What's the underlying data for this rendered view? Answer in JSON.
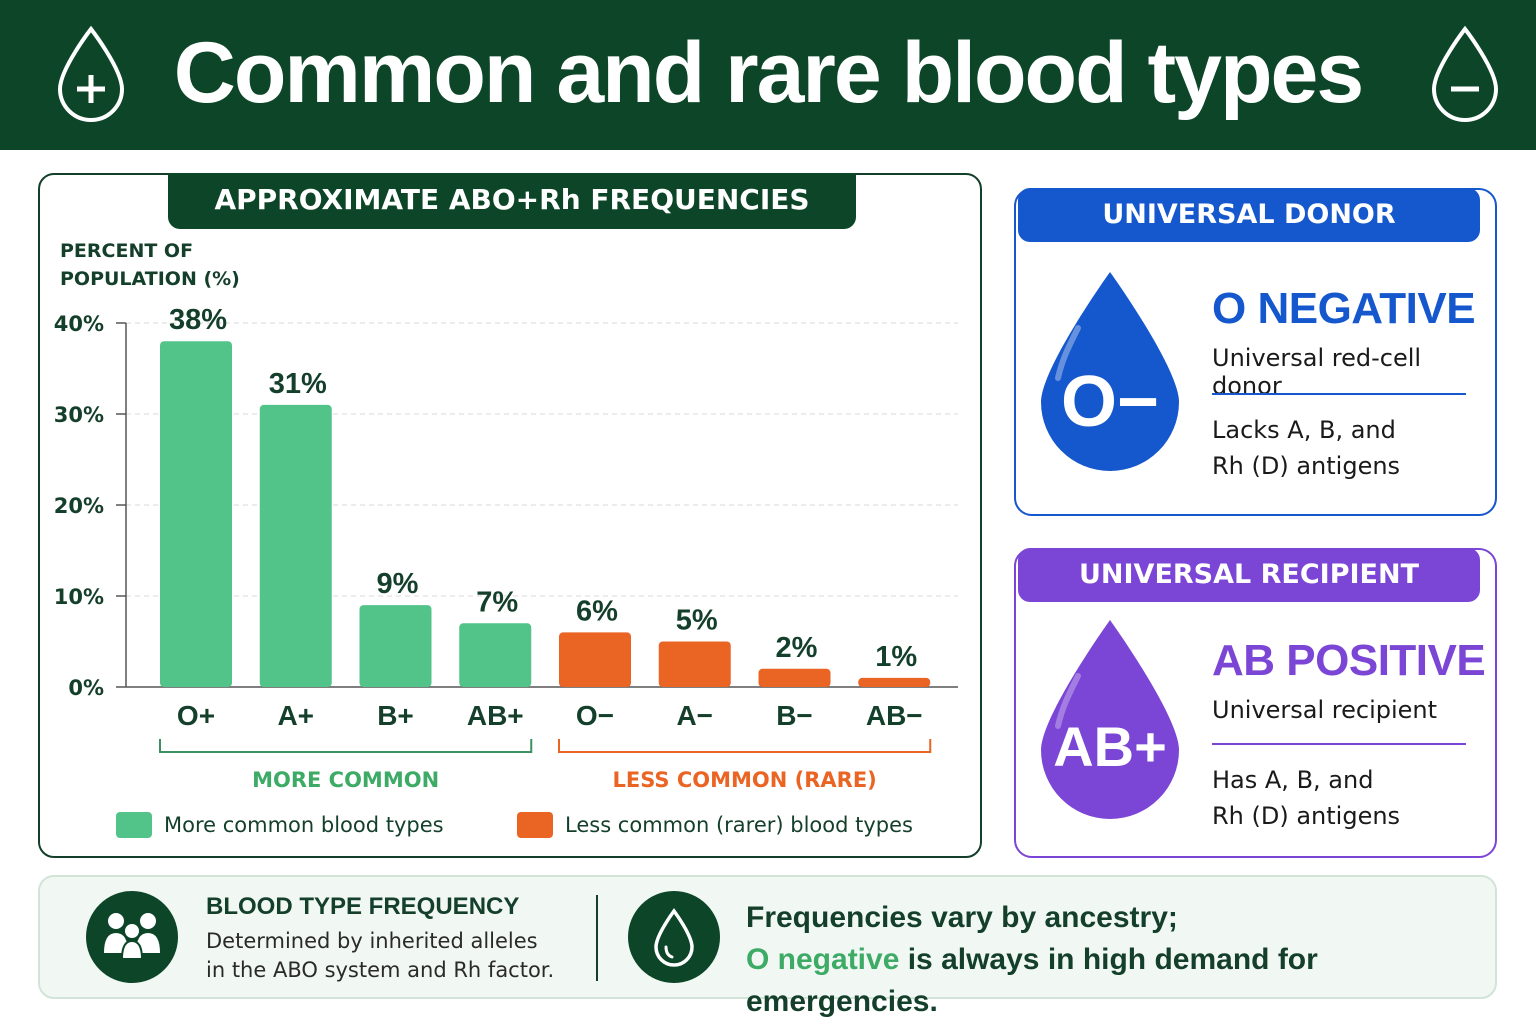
{
  "header": {
    "title": "Common and rare blood types"
  },
  "chart_panel": {
    "banner": "APPROXIMATE ABO+Rh FREQUENCIES",
    "group_labels": {
      "common": "MORE COMMON",
      "rare": "LESS COMMON (RARE)"
    },
    "legend": [
      {
        "label": "More common blood types",
        "color": "#52c48a"
      },
      {
        "label": "Less common (rarer) blood types",
        "color": "#ea6424"
      }
    ]
  },
  "chart_data": {
    "type": "bar",
    "ylabel": "PERCENT OF\nPOPULATION (%)",
    "xlabel": "",
    "ylim": [
      0,
      40
    ],
    "yticks": [
      "0%",
      "10%",
      "20%",
      "30%",
      "40%"
    ],
    "grid": true,
    "categories": [
      "O+",
      "A+",
      "B+",
      "AB+",
      "O−",
      "A−",
      "B−",
      "AB−"
    ],
    "values": [
      38,
      31,
      9,
      7,
      6,
      5,
      2,
      1
    ],
    "value_labels": [
      "38%",
      "31%",
      "9%",
      "7%",
      "6%",
      "5%",
      "2%",
      "1%"
    ],
    "groups": [
      "common",
      "common",
      "common",
      "common",
      "rare",
      "rare",
      "rare",
      "rare"
    ],
    "colors": {
      "common": "#52c48a",
      "rare": "#ea6424"
    },
    "legend_position": "bottom"
  },
  "donor_card": {
    "banner": "UNIVERSAL DONOR",
    "drop_label": "O−",
    "type": "O NEGATIVE",
    "subtitle": "Universal red-cell donor",
    "description": "Lacks A, B, and\nRh (D) antigens",
    "color": "#1557cc"
  },
  "recipient_card": {
    "banner": "UNIVERSAL RECIPIENT",
    "drop_label": "AB+",
    "type": "AB POSITIVE",
    "subtitle": "Universal recipient",
    "description": "Has A, B, and\nRh (D) antigens",
    "color": "#7b45d6"
  },
  "footer": {
    "title": "BLOOD TYPE FREQUENCY",
    "description": "Determined by inherited alleles\nin the ABO system and Rh factor.",
    "message_line1": "Frequencies vary by ancestry;",
    "message_highlight": "O negative",
    "message_rest": " is always in high demand for emergencies."
  }
}
